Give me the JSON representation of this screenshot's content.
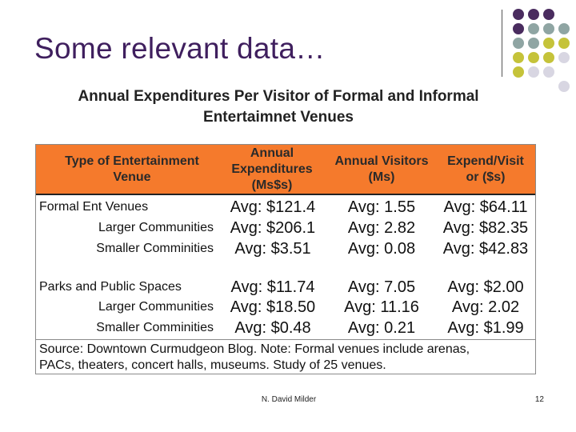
{
  "slide": {
    "title": "Some relevant data…"
  },
  "decoration_colors": {
    "purple": "#4a2c5f",
    "teal": "#8fa5a3",
    "olive": "#c5c33a",
    "lavender": "#d8d6e2"
  },
  "table": {
    "title_line1": "Annual Expenditures Per Visitor of Formal and Informal",
    "title_line2": "Entertaimnet Venues",
    "header_color": "#f57a2c",
    "headers": {
      "type_line1": "Type of Entertainment",
      "type_line2": "Venue",
      "annual_line1": "Annual",
      "annual_line2": "Expenditures",
      "annual_line3": "(Ms$s)",
      "visitors_line1": "Annual Visitors",
      "visitors_line2": "(Ms)",
      "expend_line1": "Expend/Visit",
      "expend_line2": "or ($s)"
    },
    "rows": [
      {
        "label": "Formal Ent Venues",
        "expenditures": "Avg: $121.4",
        "visitors": "Avg: 1.55",
        "per_visit": "Avg: $64.11"
      },
      {
        "label": "Larger Communities",
        "expenditures": "Avg: $206.1",
        "visitors": "Avg: 2.82",
        "per_visit": "Avg: $82.35"
      },
      {
        "label": "Smaller Comminities",
        "expenditures": "Avg: $3.51",
        "visitors": "Avg: 0.08",
        "per_visit": "Avg: $42.83"
      },
      {
        "label": "Parks and Public Spaces",
        "expenditures": "Avg: $11.74",
        "visitors": "Avg: 7.05",
        "per_visit": "Avg: $2.00"
      },
      {
        "label": "Larger Communities",
        "expenditures": "Avg: $18.50",
        "visitors": "Avg: 11.16",
        "per_visit": "Avg: 2.02"
      },
      {
        "label": "Smaller Comminities",
        "expenditures": "Avg: $0.48",
        "visitors": "Avg: 0.21",
        "per_visit": "Avg: $1.99"
      }
    ],
    "source_line1": "Source: Downtown Curmudgeon Blog. Note: Formal venues include arenas,",
    "source_line2": "PACs, theaters, concert halls, museums. Study of 25 venues."
  },
  "footer": {
    "author": "N. David Milder",
    "page": "12"
  }
}
